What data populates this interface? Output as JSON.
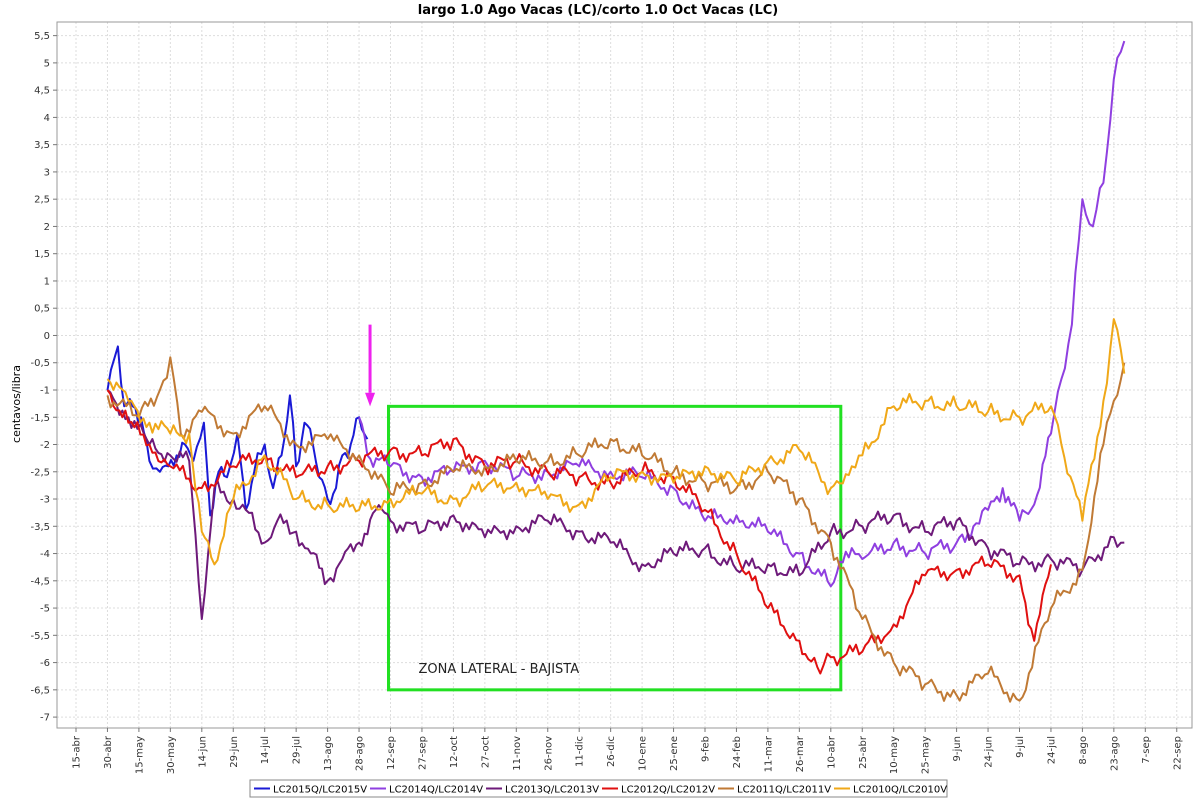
{
  "chart_data": {
    "type": "line",
    "title": "largo 1.0 Ago Vacas (LC)/corto 1.0 Oct Vacas (LC)",
    "ylabel": "centavos/libra",
    "xlabel": "",
    "ylim": [
      -7.2,
      5.75
    ],
    "yticks": [
      "5,5",
      "5",
      "4,5",
      "4",
      "3,5",
      "3",
      "2,5",
      "2",
      "1,5",
      "1",
      "0,5",
      "0",
      "-0,5",
      "-1",
      "-1,5",
      "-2",
      "-2,5",
      "-3",
      "-3,5",
      "-4",
      "-4,5",
      "-5",
      "-5,5",
      "-6",
      "-6,5",
      "-7"
    ],
    "ytick_values": [
      5.5,
      5,
      4.5,
      4,
      3.5,
      3,
      2.5,
      2,
      1.5,
      1,
      0.5,
      0,
      -0.5,
      -1,
      -1.5,
      -2,
      -2.5,
      -3,
      -3.5,
      -4,
      -4.5,
      -5,
      -5.5,
      -6,
      -6.5,
      -7
    ],
    "xticks": [
      "15-abr",
      "30-abr",
      "15-may",
      "30-may",
      "14-jun",
      "29-jun",
      "14-jul",
      "29-jul",
      "13-ago",
      "28-ago",
      "12-sep",
      "27-sep",
      "12-oct",
      "27-oct",
      "11-nov",
      "26-nov",
      "11-dic",
      "26-dic",
      "10-ene",
      "25-ene",
      "9-feb",
      "24-feb",
      "11-mar",
      "26-mar",
      "10-abr",
      "25-abr",
      "10-may",
      "25-may",
      "9-jun",
      "24-jun",
      "9-jul",
      "24-jul",
      "8-ago",
      "23-ago",
      "7-sep",
      "22-sep"
    ],
    "grid": true,
    "legend_position": "bottom",
    "series": [
      {
        "name": "LC2015Q/LC2015V",
        "color": "#1a1ad6",
        "x": [
          "30-abr",
          "5-may",
          "8-may",
          "12-may",
          "16-may",
          "20-may",
          "25-may",
          "29-may",
          "2-jun",
          "6-jun",
          "10-jun",
          "15-jun",
          "18-jun",
          "22-jun",
          "26-jun",
          "1-jul",
          "5-jul",
          "9-jul",
          "14-jul",
          "18-jul",
          "22-jul",
          "26-jul",
          "29-jul",
          "2-ago",
          "6-ago",
          "9-ago",
          "13-ago",
          "17-ago",
          "20-ago",
          "24-ago",
          "28-ago",
          "1-sep"
        ],
        "y": [
          -1.0,
          -0.2,
          -1.3,
          -1.3,
          -1.5,
          -2.3,
          -2.5,
          -2.4,
          -2.2,
          -2.0,
          -2.3,
          -1.6,
          -3.3,
          -2.5,
          -2.6,
          -1.8,
          -3.2,
          -2.5,
          -2.0,
          -2.8,
          -2.2,
          -1.1,
          -2.4,
          -1.6,
          -2.0,
          -2.6,
          -3.0,
          -2.8,
          -2.2,
          -2.0,
          -1.5,
          -1.9
        ]
      },
      {
        "name": "LC2014Q/LC2014V",
        "color": "#8f3fe0",
        "x": [
          "28-ago",
          "1-sep",
          "12-sep",
          "27-sep",
          "12-oct",
          "27-oct",
          "11-nov",
          "26-nov",
          "11-dic",
          "26-dic",
          "10-ene",
          "25-ene",
          "9-feb",
          "24-feb",
          "11-mar",
          "26-mar",
          "10-abr",
          "20-abr",
          "25-abr",
          "10-may",
          "25-may",
          "9-jun",
          "17-jun",
          "24-jun",
          "1-jul",
          "9-jul",
          "16-jul",
          "24-jul",
          "29-jul",
          "3-ago",
          "8-ago",
          "13-ago",
          "18-ago",
          "23-ago",
          "28-ago"
        ],
        "y": [
          -1.5,
          -2.2,
          -2.4,
          -2.6,
          -2.5,
          -2.3,
          -2.6,
          -2.5,
          -2.4,
          -2.5,
          -2.6,
          -2.8,
          -3.4,
          -3.3,
          -3.6,
          -4.0,
          -4.6,
          -3.9,
          -4.1,
          -3.8,
          -4.0,
          -3.8,
          -3.5,
          -3.2,
          -2.8,
          -3.4,
          -3.1,
          -1.8,
          -0.8,
          0.2,
          2.5,
          2.0,
          2.8,
          4.7,
          5.4
        ]
      },
      {
        "name": "LC2013Q/LC2013V",
        "color": "#6e1a7a",
        "x": [
          "30-abr",
          "10-may",
          "20-may",
          "30-may",
          "8-jun",
          "14-jun",
          "20-jun",
          "29-jun",
          "5-jul",
          "14-jul",
          "20-jul",
          "29-jul",
          "5-ago",
          "13-ago",
          "20-ago",
          "28-ago",
          "5-sep",
          "12-sep",
          "27-sep",
          "12-oct",
          "27-oct",
          "11-nov",
          "26-nov",
          "11-dic",
          "26-dic",
          "10-ene",
          "25-ene",
          "9-feb",
          "24-feb",
          "11-mar",
          "26-mar",
          "10-abr",
          "25-abr",
          "10-may",
          "25-may",
          "9-jun",
          "24-jun",
          "9-jul",
          "24-jul",
          "8-ago",
          "23-ago",
          "28-ago"
        ],
        "y": [
          -1.0,
          -1.5,
          -2.0,
          -2.2,
          -2.3,
          -5.2,
          -2.8,
          -3.0,
          -3.2,
          -3.8,
          -3.4,
          -3.6,
          -4.0,
          -4.5,
          -4.1,
          -3.8,
          -3.2,
          -3.4,
          -3.6,
          -3.3,
          -3.7,
          -3.5,
          -3.4,
          -3.6,
          -3.8,
          -4.2,
          -4.0,
          -3.9,
          -4.3,
          -4.2,
          -4.4,
          -3.6,
          -3.5,
          -3.3,
          -3.6,
          -3.4,
          -3.9,
          -4.2,
          -4.1,
          -4.3,
          -3.7,
          -3.8
        ]
      },
      {
        "name": "LC2012Q/LC2012V",
        "color": "#e01010",
        "x": [
          "30-abr",
          "10-may",
          "20-may",
          "30-may",
          "14-jun",
          "29-jun",
          "14-jul",
          "29-jul",
          "13-ago",
          "28-ago",
          "12-sep",
          "27-sep",
          "12-oct",
          "27-oct",
          "11-nov",
          "26-nov",
          "11-dic",
          "26-dic",
          "10-ene",
          "25-ene",
          "9-feb",
          "24-feb",
          "11-mar",
          "26-mar",
          "5-abr",
          "10-abr",
          "25-abr",
          "10-may",
          "25-may",
          "9-jun",
          "24-jun",
          "9-jul",
          "16-jul",
          "24-jul"
        ],
        "y": [
          -1.0,
          -1.6,
          -2.0,
          -2.4,
          -2.8,
          -2.4,
          -2.2,
          -2.6,
          -2.4,
          -2.3,
          -2.1,
          -2.2,
          -1.9,
          -2.4,
          -2.3,
          -2.5,
          -2.6,
          -2.7,
          -2.5,
          -2.6,
          -3.2,
          -4.0,
          -5.0,
          -5.6,
          -6.2,
          -5.9,
          -5.8,
          -5.3,
          -4.4,
          -4.3,
          -4.2,
          -4.4,
          -5.6,
          -4.2
        ]
      },
      {
        "name": "LC2011Q/LC2011V",
        "color": "#c07a35",
        "x": [
          "30-abr",
          "15-may",
          "25-may",
          "30-may",
          "4-jun",
          "14-jun",
          "29-jun",
          "14-jul",
          "29-jul",
          "13-ago",
          "28-ago",
          "12-sep",
          "27-sep",
          "12-oct",
          "27-oct",
          "11-nov",
          "26-nov",
          "11-dic",
          "26-dic",
          "10-ene",
          "25-ene",
          "9-feb",
          "24-feb",
          "11-mar",
          "26-mar",
          "10-abr",
          "25-abr",
          "10-may",
          "25-may",
          "9-jun",
          "24-jun",
          "9-jul",
          "24-jul",
          "8-ago",
          "18-ago",
          "23-ago",
          "28-ago"
        ],
        "y": [
          -1.1,
          -1.5,
          -1.0,
          -0.4,
          -1.8,
          -1.4,
          -1.8,
          -1.3,
          -2.0,
          -1.9,
          -2.2,
          -2.9,
          -2.7,
          -2.5,
          -2.4,
          -2.3,
          -2.3,
          -2.2,
          -1.9,
          -2.2,
          -2.5,
          -2.7,
          -2.8,
          -2.5,
          -3.0,
          -3.8,
          -5.2,
          -6.0,
          -6.4,
          -6.6,
          -6.2,
          -6.7,
          -5.0,
          -4.3,
          -2.0,
          -1.2,
          -0.5
        ]
      },
      {
        "name": "LC2010Q/LC2010V",
        "color": "#f0a818",
        "x": [
          "30-abr",
          "10-may",
          "20-may",
          "30-may",
          "8-jun",
          "14-jun",
          "20-jun",
          "29-jun",
          "14-jul",
          "29-jul",
          "13-ago",
          "28-ago",
          "12-sep",
          "27-sep",
          "12-oct",
          "27-oct",
          "11-nov",
          "26-nov",
          "11-dic",
          "26-dic",
          "10-ene",
          "25-ene",
          "9-feb",
          "24-feb",
          "11-mar",
          "26-mar",
          "10-abr",
          "20-abr",
          "25-abr",
          "10-may",
          "25-may",
          "9-jun",
          "24-jun",
          "9-jul",
          "24-jul",
          "29-jul",
          "8-ago",
          "18-ago",
          "23-ago",
          "28-ago"
        ],
        "y": [
          -0.8,
          -1.2,
          -1.6,
          -1.8,
          -1.8,
          -3.6,
          -4.2,
          -3.0,
          -2.2,
          -3.0,
          -3.1,
          -3.2,
          -3.0,
          -2.9,
          -3.0,
          -2.8,
          -2.7,
          -3.0,
          -3.1,
          -2.6,
          -2.5,
          -2.7,
          -2.4,
          -2.7,
          -2.3,
          -2.1,
          -2.8,
          -2.4,
          -2.2,
          -1.3,
          -1.2,
          -1.3,
          -1.4,
          -1.5,
          -1.3,
          -2.0,
          -3.4,
          -1.2,
          0.3,
          -0.7
        ]
      }
    ],
    "annotations": {
      "box_label": "ZONA LATERAL - BAJISTA",
      "box_color": "#22e022",
      "arrow_color": "#ee22ee"
    }
  }
}
